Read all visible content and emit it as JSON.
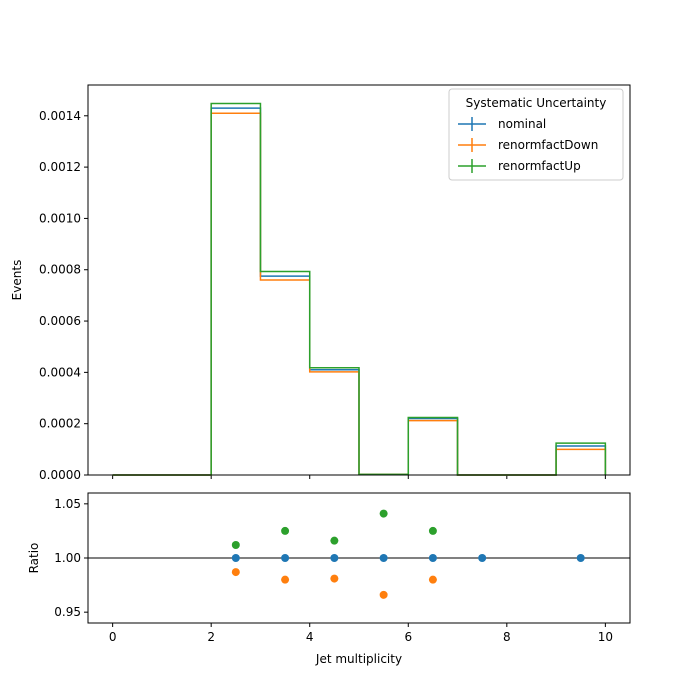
{
  "chart_data": [
    {
      "type": "step",
      "ylabel": "Events",
      "xlim": [
        -0.5,
        10.5
      ],
      "ylim": [
        0,
        0.00152
      ],
      "xticks": [
        0,
        2,
        4,
        6,
        8,
        10
      ],
      "yticks": [
        0,
        0.0002,
        0.0004,
        0.0006,
        0.0008,
        0.001,
        0.0012,
        0.0014
      ],
      "ytick_labels": [
        "0.0000",
        "0.0002",
        "0.0004",
        "0.0006",
        "0.0008",
        "0.0010",
        "0.0012",
        "0.0014"
      ],
      "bin_edges": [
        0,
        1,
        2,
        3,
        4,
        5,
        6,
        7,
        8,
        9,
        10
      ],
      "legend": {
        "title": "Systematic Uncertainty",
        "placement": "upper right"
      },
      "series": [
        {
          "name": "nominal",
          "color": "#1f77b4",
          "values": [
            0,
            0,
            0.00143,
            0.000775,
            0.00041,
            2.5e-06,
            0.00022,
            0,
            0,
            0.000113
          ]
        },
        {
          "name": "renormfactDown",
          "color": "#ff7f0e",
          "values": [
            0,
            0,
            0.00141,
            0.00076,
            0.000402,
            2.4e-06,
            0.000212,
            0,
            0,
            0.0001
          ]
        },
        {
          "name": "renormfactUp",
          "color": "#2ca02c",
          "values": [
            0,
            0,
            0.001448,
            0.000793,
            0.000418,
            2.6e-06,
            0.000224,
            0,
            0,
            0.000124
          ]
        }
      ]
    },
    {
      "type": "scatter",
      "xlabel": "Jet multiplicity",
      "ylabel": "Ratio",
      "xlim": [
        -0.5,
        10.5
      ],
      "ylim": [
        0.94,
        1.06
      ],
      "xticks": [
        0,
        2,
        4,
        6,
        8,
        10
      ],
      "yticks": [
        0.95,
        1.0,
        1.05
      ],
      "ytick_labels": [
        "0.95",
        "1.00",
        "1.05"
      ],
      "reference_line": 1.0,
      "series": [
        {
          "name": "nominal",
          "color": "#1f77b4",
          "x": [
            2.5,
            3.5,
            4.5,
            5.5,
            6.5,
            7.5,
            9.5
          ],
          "y": [
            1.0,
            1.0,
            1.0,
            1.0,
            1.0,
            1.0,
            1.0
          ]
        },
        {
          "name": "renormfactDown",
          "color": "#ff7f0e",
          "x": [
            2.5,
            3.5,
            4.5,
            5.5,
            6.5
          ],
          "y": [
            0.987,
            0.98,
            0.981,
            0.966,
            0.98
          ]
        },
        {
          "name": "renormfactUp",
          "color": "#2ca02c",
          "x": [
            2.5,
            3.5,
            4.5,
            5.5,
            6.5
          ],
          "y": [
            1.012,
            1.025,
            1.016,
            1.041,
            1.025
          ]
        }
      ]
    }
  ]
}
